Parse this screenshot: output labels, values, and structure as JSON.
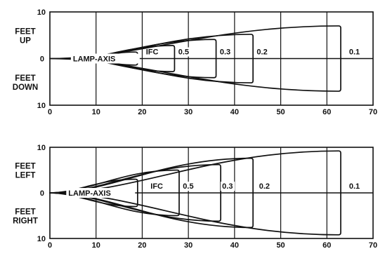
{
  "chart_data": [
    {
      "type": "line",
      "xlim": [
        0,
        70
      ],
      "ylim": [
        -10,
        10
      ],
      "x_ticks": [
        "0",
        "10",
        "20",
        "30",
        "40",
        "50",
        "60",
        "70"
      ],
      "y_tick_top": "10",
      "y_tick_mid": "0",
      "y_tick_bottom": "10",
      "label_pos_top": "FEET",
      "label_pos_bottom": "UP",
      "label_neg_top": "FEET",
      "label_neg_bottom": "DOWN",
      "axis_label": "LAMP-AXIS",
      "grid": true,
      "contours": [
        {
          "label": "IFC",
          "start": 6,
          "end": 19,
          "half_width": 1.4,
          "label_x": 20.5
        },
        {
          "label": "0.5",
          "start": 5,
          "end": 27,
          "half_width": 2.8,
          "label_x": 27.5
        },
        {
          "label": "0.3",
          "start": 4,
          "end": 36,
          "half_width": 4.1,
          "label_x": 36.5
        },
        {
          "label": "0.2",
          "start": 3,
          "end": 44,
          "half_width": 5.2,
          "label_x": 44.5
        },
        {
          "label": "0.1",
          "start": 0,
          "end": 63,
          "half_width": 7.0,
          "label_x": 64.5
        }
      ]
    },
    {
      "type": "line",
      "xlim": [
        0,
        70
      ],
      "ylim": [
        -10,
        10
      ],
      "x_ticks": [
        "0",
        "10",
        "20",
        "30",
        "40",
        "50",
        "60",
        "70"
      ],
      "y_tick_top": "10",
      "y_tick_mid": "0",
      "y_tick_bottom": "10",
      "label_pos_top": "FEET",
      "label_pos_bottom": "LEFT",
      "label_neg_top": "FEET",
      "label_neg_bottom": "RIGHT",
      "axis_label": "LAMP-AXIS",
      "grid": true,
      "contours": [
        {
          "label": "IFC",
          "start": 0,
          "end": 19,
          "half_width": 3.0,
          "label_x": 21.5
        },
        {
          "label": "0.5",
          "start": 0,
          "end": 28,
          "half_width": 5.0,
          "label_x": 28.5
        },
        {
          "label": "0.3",
          "start": 0,
          "end": 37,
          "half_width": 6.2,
          "label_x": 37.0
        },
        {
          "label": "0.2",
          "start": 0,
          "end": 44,
          "half_width": 7.6,
          "label_x": 45.0
        },
        {
          "label": "0.1",
          "start": 0,
          "end": 63,
          "half_width": 9.2,
          "label_x": 64.5
        }
      ]
    }
  ]
}
